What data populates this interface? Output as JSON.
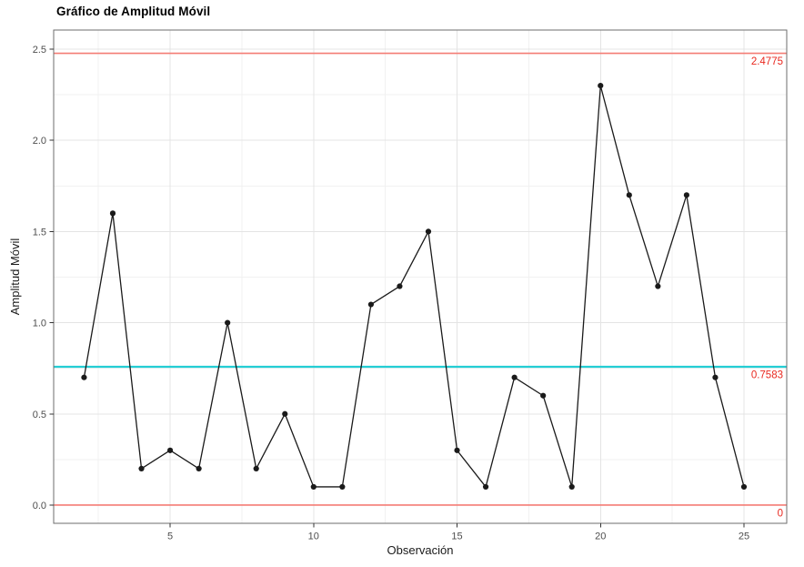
{
  "figure": {
    "title": "Gráfico de Amplitud Móvil"
  },
  "chart_data": {
    "type": "line",
    "title": "Gráfico de Amplitud Móvil",
    "xlabel": "Observación",
    "ylabel": "Amplitud Móvil",
    "legend": "none",
    "grid": true,
    "x": [
      2,
      3,
      4,
      5,
      6,
      7,
      8,
      9,
      10,
      11,
      12,
      13,
      14,
      15,
      16,
      17,
      18,
      19,
      20,
      21,
      22,
      23,
      24,
      25
    ],
    "y": [
      0.7,
      1.6,
      0.2,
      0.3,
      0.2,
      1.0,
      0.2,
      0.5,
      0.1,
      0.1,
      1.1,
      1.2,
      1.5,
      0.3,
      0.1,
      0.7,
      0.6,
      0.1,
      2.3,
      1.7,
      1.2,
      1.7,
      0.7,
      0.1
    ],
    "series_name": "amplitud-movil",
    "series_color": "#1a1a1a",
    "marker": "circle",
    "xlim": [
      0.94,
      26.49
    ],
    "ylim": [
      -0.1,
      2.605
    ],
    "x_ticks": [
      5,
      10,
      15,
      20,
      25
    ],
    "x_tick_labels": [
      "5",
      "10",
      "15",
      "20",
      "25"
    ],
    "y_ticks": [
      0,
      0.5,
      1.0,
      1.5,
      2.0,
      2.5
    ],
    "y_tick_labels": [
      "0.0",
      "0.5",
      "1.0",
      "1.5",
      "2.0",
      "2.5"
    ],
    "x_minor_gridlines": [
      2.5,
      7.5,
      12.5,
      17.5,
      22.5
    ],
    "y_minor_gridlines": [
      0.25,
      0.75,
      1.25,
      1.75,
      2.25
    ],
    "reference_lines": [
      {
        "id": "ucl",
        "name": "upper-control-limit",
        "value": 2.4775,
        "label": "2.4775",
        "line_color": "#F47C75",
        "label_color": "#E9281F"
      },
      {
        "id": "cl",
        "name": "center-line",
        "value": 0.7583,
        "label": "0.7583",
        "line_color": "#24CED4",
        "label_color": "#E9281F"
      },
      {
        "id": "lcl",
        "name": "lower-control-limit",
        "value": 0,
        "label": "0",
        "line_color": "#F47C75",
        "label_color": "#E9281F"
      }
    ],
    "colors": {
      "panel_background": "#FFFFFF",
      "panel_border": "#6E6E6E",
      "grid_major": "#E4E4E4",
      "grid_minor": "#F1F1F1",
      "tick": "#333333",
      "tick_label": "#4D4D4D",
      "axis_title": "#1A1A1A",
      "title": "#000000"
    }
  }
}
